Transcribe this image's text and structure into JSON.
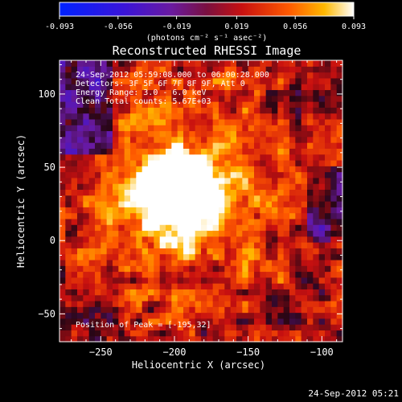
{
  "chart_data": {
    "type": "heatmap",
    "title": "Reconstructed RHESSI Image",
    "xlabel": "Heliocentric X (arcsec)",
    "ylabel": "Heliocentric Y (arcsec)",
    "xlim": [
      -278,
      -86
    ],
    "ylim": [
      -69,
      123
    ],
    "xticks": [
      -250,
      -200,
      -150,
      -100
    ],
    "yticks": [
      -50,
      0,
      50,
      100
    ],
    "colorbar": {
      "ticks": [
        "-0.093",
        "-0.056",
        "-0.019",
        "0.019",
        "0.056",
        "0.093"
      ],
      "units": "(photons cm⁻² s⁻¹ asec⁻²)",
      "range": [
        -0.093,
        0.093
      ]
    },
    "annotations": [
      "24-Sep-2012 05:59:08.000 to 06:00:28.000",
      "Detectors: 3F 5F 6F 7F 8F 9F, Att 0",
      "Energy Range: 3.0 - 6.0 keV",
      "Clean     Total counts: 5.67E+03"
    ],
    "peak_label": "Position of Peak = [-195,32]",
    "peak": [
      -195,
      32
    ],
    "timestamp": "24-Sep-2012 05:21"
  }
}
